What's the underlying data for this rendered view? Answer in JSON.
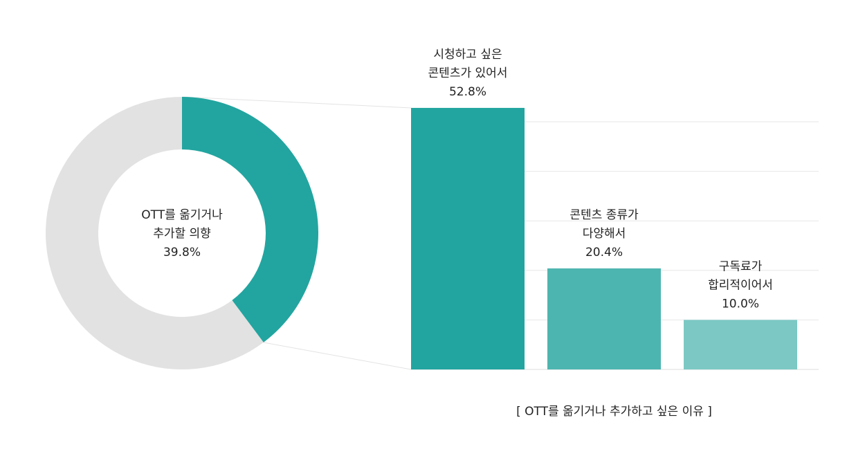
{
  "chart_data": [
    {
      "type": "pie",
      "variant": "donut",
      "center_label": [
        "OTT를 옮기거나",
        "추가할 의향",
        "39.8%"
      ],
      "slices": [
        {
          "label": "OTT를 옮기거나 추가할 의향",
          "value": 39.8,
          "color": "#22a5a0"
        },
        {
          "label": "",
          "value": 60.2,
          "color": "#e2e2e2"
        }
      ]
    },
    {
      "type": "bar",
      "caption": "[ OTT를 옮기거나 추가하고 싶은 이유 ]",
      "categories": [
        [
          "시청하고 싶은",
          "콘텐츠가 있어서"
        ],
        [
          "콘텐츠 종류가",
          "다양해서"
        ],
        [
          "구독료가",
          "합리적이어서"
        ]
      ],
      "values": [
        52.8,
        20.4,
        10.0
      ],
      "value_labels": [
        "52.8%",
        "20.4%",
        "10.0%"
      ],
      "colors": [
        "#22a5a0",
        "#4db5b0",
        "#7cc8c4"
      ],
      "ylim": [
        0,
        50
      ],
      "grid": true,
      "gridline_step": 10
    }
  ]
}
